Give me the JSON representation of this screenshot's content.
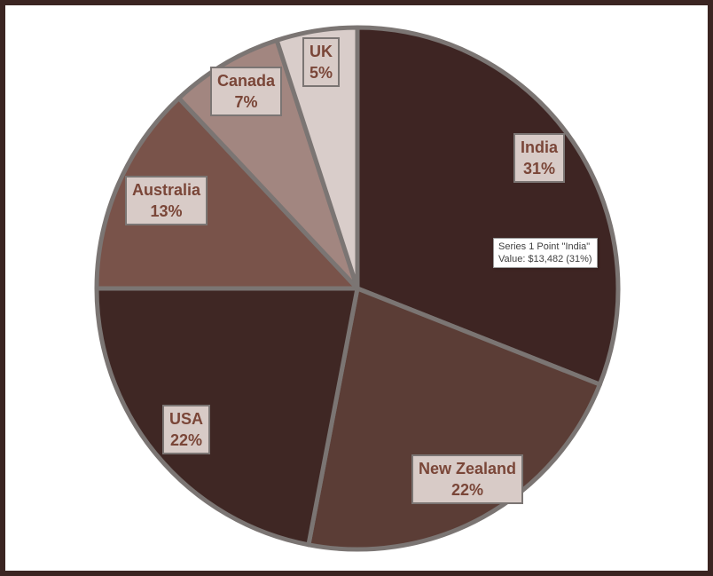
{
  "chart_data": {
    "type": "pie",
    "title": "",
    "categories": [
      "India",
      "New Zealand",
      "USA",
      "Australia",
      "Canada",
      "UK"
    ],
    "values": [
      31,
      22,
      22,
      13,
      7,
      5
    ],
    "value_unit": "%",
    "colors": [
      "#3e2523",
      "#5b3d36",
      "#3f2724",
      "#79534a",
      "#a28680",
      "#d9cdca"
    ],
    "border_color": "#7b7573",
    "labels": [
      {
        "name": "India",
        "pct": "31%"
      },
      {
        "name": "New Zealand",
        "pct": "22%"
      },
      {
        "name": "USA",
        "pct": "22%"
      },
      {
        "name": "Australia",
        "pct": "13%"
      },
      {
        "name": "Canada",
        "pct": "7%"
      },
      {
        "name": "UK",
        "pct": "5%"
      }
    ],
    "tooltip": {
      "line1": "Series 1 Point \"India\"",
      "line2": "Value:  $13,482  (31%)"
    }
  }
}
